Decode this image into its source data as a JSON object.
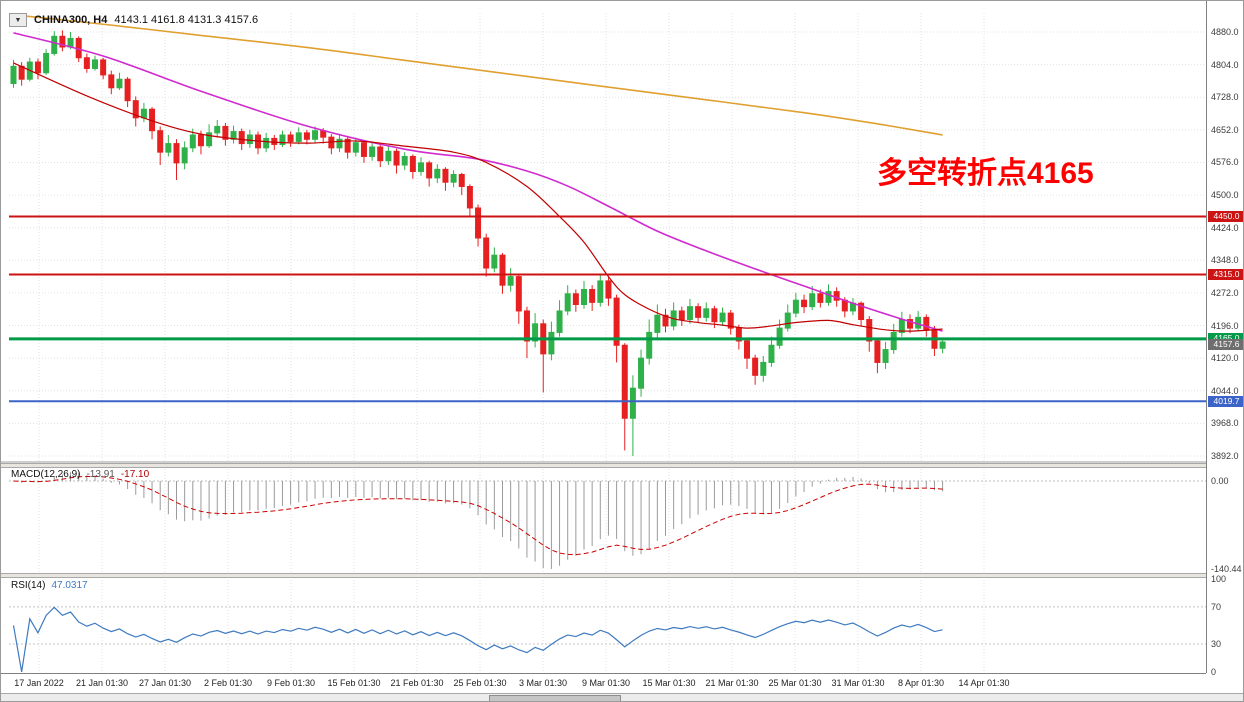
{
  "window": {
    "collapse_icon": "▼",
    "symbol": "CHINA300, H4",
    "ohlc": "4143.1 4161.8 4131.3 4157.6"
  },
  "annotation": {
    "text": "多空转折点4165",
    "color": "#FF0000"
  },
  "colors": {
    "up": "#2fb14a",
    "down": "#e62020",
    "grid": "#e2e2e2",
    "ma_fast": "#c00000",
    "ma_mid": "#d02ad0",
    "ma_slow": "#e0a030",
    "macd_hist": "#9a9a9a",
    "macd_signal": "#cc0000",
    "rsi": "#3e7ac0",
    "panel_border": "#9c9c9c"
  },
  "price_axis": {
    "ticks": [
      "4880.0",
      "4804.0",
      "4728.0",
      "4652.0",
      "4576.0",
      "4500.0",
      "4424.0",
      "4348.0",
      "4272.0",
      "4196.0",
      "4120.0",
      "4044.0",
      "3968.0",
      "3892.0"
    ],
    "tags": [
      {
        "text": "4450.0",
        "price": 4450.0,
        "bg": "#cc1414",
        "fg": "#ffffff"
      },
      {
        "text": "4315.0",
        "price": 4315.0,
        "bg": "#cc1414",
        "fg": "#ffffff"
      },
      {
        "text": "4165.0",
        "price": 4165.0,
        "bg": "#009a48",
        "fg": "#ffffff"
      },
      {
        "text": "4157.6",
        "price": 4151.0,
        "bg": "#6e6e6e",
        "fg": "#ffffff"
      },
      {
        "text": "4019.7",
        "price": 4019.7,
        "bg": "#3c64c8",
        "fg": "#ffffff"
      }
    ]
  },
  "time_axis": {
    "labels": [
      "17 Jan 2022",
      "21 Jan 01:30",
      "27 Jan 01:30",
      "2 Feb 01:30",
      "9 Feb 01:30",
      "15 Feb 01:30",
      "21 Feb 01:30",
      "25 Feb 01:30",
      "3 Mar 01:30",
      "9 Mar 01:30",
      "15 Mar 01:30",
      "21 Mar 01:30",
      "25 Mar 01:30",
      "31 Mar 01:30",
      "8 Apr 01:30",
      "14 Apr 01:30"
    ]
  },
  "indicators": {
    "macd": {
      "name": "MACD(12,26,9)",
      "value_main": "-13.91",
      "value_signal": "-17.10",
      "params": [
        12,
        26,
        9
      ],
      "min": -140.44,
      "axis_labels": [
        {
          "text": "0.00",
          "value": 0
        },
        {
          "text": "-140.44",
          "value": -140.44
        }
      ]
    },
    "rsi": {
      "name": "RSI(14)",
      "value": "47.0317",
      "period": 14,
      "levels": [
        70,
        30
      ],
      "axis_labels": [
        {
          "text": "100",
          "value": 100
        },
        {
          "text": "70",
          "value": 70
        },
        {
          "text": "30",
          "value": 30
        },
        {
          "text": "0",
          "value": 0
        }
      ]
    }
  },
  "chart_data": {
    "type": "candlestick",
    "symbol": "CHINA300",
    "timeframe": "H4",
    "price_range": [
      3892,
      4880
    ],
    "last_ohlc": {
      "open": 4143.1,
      "high": 4161.8,
      "low": 4131.3,
      "close": 4157.6
    },
    "hlines": [
      {
        "label": "4450.0",
        "price": 4450.0,
        "color": "#cc1212",
        "width": 2
      },
      {
        "label": "4315.0",
        "price": 4315.0,
        "color": "#cc1212",
        "width": 2
      },
      {
        "label": "4165.0",
        "price": 4165.0,
        "color": "#009a48",
        "width": 3
      },
      {
        "label": "4019.7",
        "price": 4019.7,
        "color": "#3c64c8",
        "width": 2
      }
    ],
    "ma_lines": [
      {
        "name": "ma-slow-orange",
        "color": "#e0a030",
        "width": 1.6,
        "points": [
          [
            0,
            4920
          ],
          [
            12,
            4896
          ],
          [
            23,
            4872
          ],
          [
            36,
            4844
          ],
          [
            48,
            4814
          ],
          [
            60,
            4784
          ],
          [
            72,
            4754
          ],
          [
            85,
            4722
          ],
          [
            97,
            4692
          ],
          [
            106,
            4666
          ],
          [
            114,
            4640
          ]
        ]
      },
      {
        "name": "ma-mid-magenta",
        "color": "#d02ad0",
        "width": 1.6,
        "points": [
          [
            0,
            4878
          ],
          [
            11,
            4824
          ],
          [
            23,
            4742
          ],
          [
            36,
            4661
          ],
          [
            48,
            4607
          ],
          [
            57,
            4584
          ],
          [
            63,
            4556
          ],
          [
            68,
            4521
          ],
          [
            73,
            4474
          ],
          [
            79,
            4416
          ],
          [
            85,
            4370
          ],
          [
            91,
            4328
          ],
          [
            97,
            4288
          ],
          [
            103,
            4248
          ],
          [
            109,
            4211
          ],
          [
            114,
            4183
          ]
        ]
      },
      {
        "name": "ma-fast-red",
        "color": "#c00000",
        "width": 1.2,
        "points": [
          [
            0,
            4808
          ],
          [
            9,
            4731
          ],
          [
            17,
            4673
          ],
          [
            23,
            4642
          ],
          [
            30,
            4626
          ],
          [
            36,
            4621
          ],
          [
            42,
            4626
          ],
          [
            48,
            4614
          ],
          [
            54,
            4600
          ],
          [
            58,
            4576
          ],
          [
            63,
            4520
          ],
          [
            67,
            4450
          ],
          [
            70,
            4390
          ],
          [
            73,
            4310
          ],
          [
            75,
            4268
          ],
          [
            78,
            4234
          ],
          [
            81,
            4212
          ],
          [
            84,
            4203
          ],
          [
            87,
            4197
          ],
          [
            90,
            4190
          ],
          [
            93,
            4195
          ],
          [
            96,
            4203
          ],
          [
            100,
            4208
          ],
          [
            103,
            4198
          ],
          [
            107,
            4186
          ],
          [
            110,
            4183
          ],
          [
            114,
            4188
          ]
        ]
      }
    ],
    "candles": [
      [
        4760,
        4815,
        4750,
        4800
      ],
      [
        4800,
        4810,
        4755,
        4770
      ],
      [
        4770,
        4820,
        4765,
        4810
      ],
      [
        4810,
        4818,
        4770,
        4785
      ],
      [
        4785,
        4840,
        4780,
        4830
      ],
      [
        4830,
        4882,
        4825,
        4870
      ],
      [
        4870,
        4884,
        4835,
        4845
      ],
      [
        4845,
        4880,
        4840,
        4865
      ],
      [
        4865,
        4870,
        4810,
        4820
      ],
      [
        4820,
        4830,
        4785,
        4795
      ],
      [
        4795,
        4825,
        4790,
        4815
      ],
      [
        4815,
        4820,
        4770,
        4780
      ],
      [
        4780,
        4790,
        4735,
        4750
      ],
      [
        4750,
        4785,
        4745,
        4770
      ],
      [
        4770,
        4775,
        4705,
        4720
      ],
      [
        4720,
        4730,
        4660,
        4680
      ],
      [
        4680,
        4715,
        4670,
        4700
      ],
      [
        4700,
        4705,
        4630,
        4650
      ],
      [
        4650,
        4660,
        4570,
        4600
      ],
      [
        4600,
        4640,
        4590,
        4620
      ],
      [
        4620,
        4630,
        4535,
        4575
      ],
      [
        4575,
        4625,
        4560,
        4610
      ],
      [
        4610,
        4655,
        4600,
        4640
      ],
      [
        4640,
        4650,
        4595,
        4615
      ],
      [
        4615,
        4665,
        4610,
        4645
      ],
      [
        4645,
        4675,
        4635,
        4660
      ],
      [
        4660,
        4668,
        4615,
        4630
      ],
      [
        4630,
        4662,
        4620,
        4648
      ],
      [
        4648,
        4655,
        4605,
        4620
      ],
      [
        4620,
        4652,
        4610,
        4640
      ],
      [
        4640,
        4648,
        4595,
        4610
      ],
      [
        4610,
        4645,
        4600,
        4632
      ],
      [
        4632,
        4640,
        4605,
        4618
      ],
      [
        4618,
        4650,
        4612,
        4640
      ],
      [
        4640,
        4648,
        4612,
        4625
      ],
      [
        4625,
        4658,
        4618,
        4645
      ],
      [
        4645,
        4652,
        4618,
        4630
      ],
      [
        4630,
        4660,
        4622,
        4650
      ],
      [
        4650,
        4656,
        4620,
        4635
      ],
      [
        4635,
        4642,
        4595,
        4610
      ],
      [
        4610,
        4640,
        4600,
        4630
      ],
      [
        4630,
        4636,
        4585,
        4600
      ],
      [
        4600,
        4634,
        4590,
        4622
      ],
      [
        4622,
        4628,
        4575,
        4590
      ],
      [
        4590,
        4625,
        4580,
        4612
      ],
      [
        4612,
        4618,
        4565,
        4580
      ],
      [
        4580,
        4615,
        4570,
        4602
      ],
      [
        4602,
        4608,
        4550,
        4570
      ],
      [
        4570,
        4600,
        4558,
        4590
      ],
      [
        4590,
        4595,
        4538,
        4555
      ],
      [
        4555,
        4588,
        4545,
        4575
      ],
      [
        4575,
        4580,
        4520,
        4540
      ],
      [
        4540,
        4572,
        4528,
        4560
      ],
      [
        4560,
        4565,
        4510,
        4530
      ],
      [
        4530,
        4558,
        4518,
        4548
      ],
      [
        4548,
        4552,
        4500,
        4520
      ],
      [
        4520,
        4525,
        4450,
        4470
      ],
      [
        4470,
        4478,
        4380,
        4400
      ],
      [
        4400,
        4410,
        4310,
        4330
      ],
      [
        4330,
        4378,
        4320,
        4360
      ],
      [
        4360,
        4365,
        4270,
        4290
      ],
      [
        4290,
        4330,
        4275,
        4310
      ],
      [
        4310,
        4315,
        4200,
        4230
      ],
      [
        4230,
        4240,
        4120,
        4160
      ],
      [
        4160,
        4225,
        4145,
        4200
      ],
      [
        4200,
        4210,
        4040,
        4130
      ],
      [
        4130,
        4205,
        4115,
        4180
      ],
      [
        4180,
        4255,
        4170,
        4230
      ],
      [
        4230,
        4290,
        4220,
        4270
      ],
      [
        4270,
        4280,
        4228,
        4245
      ],
      [
        4245,
        4300,
        4235,
        4280
      ],
      [
        4280,
        4290,
        4230,
        4250
      ],
      [
        4250,
        4315,
        4240,
        4300
      ],
      [
        4300,
        4308,
        4242,
        4260
      ],
      [
        4260,
        4268,
        4110,
        4150
      ],
      [
        4150,
        4155,
        3905,
        3980
      ],
      [
        3980,
        4080,
        3892,
        4050
      ],
      [
        4050,
        4140,
        4030,
        4120
      ],
      [
        4120,
        4210,
        4105,
        4180
      ],
      [
        4180,
        4245,
        4165,
        4220
      ],
      [
        4220,
        4235,
        4180,
        4195
      ],
      [
        4195,
        4250,
        4185,
        4230
      ],
      [
        4230,
        4240,
        4195,
        4210
      ],
      [
        4210,
        4258,
        4200,
        4240
      ],
      [
        4240,
        4248,
        4202,
        4215
      ],
      [
        4215,
        4250,
        4205,
        4235
      ],
      [
        4235,
        4242,
        4190,
        4205
      ],
      [
        4205,
        4238,
        4195,
        4225
      ],
      [
        4225,
        4232,
        4175,
        4190
      ],
      [
        4190,
        4198,
        4140,
        4160
      ],
      [
        4160,
        4168,
        4095,
        4120
      ],
      [
        4120,
        4128,
        4058,
        4080
      ],
      [
        4080,
        4125,
        4065,
        4110
      ],
      [
        4110,
        4170,
        4100,
        4150
      ],
      [
        4150,
        4210,
        4142,
        4190
      ],
      [
        4190,
        4245,
        4182,
        4225
      ],
      [
        4225,
        4272,
        4215,
        4255
      ],
      [
        4255,
        4268,
        4225,
        4240
      ],
      [
        4240,
        4288,
        4232,
        4270
      ],
      [
        4270,
        4280,
        4238,
        4250
      ],
      [
        4250,
        4292,
        4242,
        4275
      ],
      [
        4275,
        4285,
        4240,
        4255
      ],
      [
        4255,
        4262,
        4215,
        4230
      ],
      [
        4230,
        4260,
        4220,
        4248
      ],
      [
        4248,
        4252,
        4195,
        4210
      ],
      [
        4210,
        4218,
        4135,
        4160
      ],
      [
        4160,
        4168,
        4085,
        4110
      ],
      [
        4110,
        4158,
        4095,
        4140
      ],
      [
        4140,
        4200,
        4130,
        4180
      ],
      [
        4180,
        4228,
        4170,
        4210
      ],
      [
        4210,
        4222,
        4178,
        4190
      ],
      [
        4190,
        4230,
        4182,
        4215
      ],
      [
        4215,
        4222,
        4170,
        4185
      ],
      [
        4185,
        4195,
        4125,
        4143
      ],
      [
        4143.1,
        4161.8,
        4131.3,
        4157.6
      ]
    ]
  }
}
